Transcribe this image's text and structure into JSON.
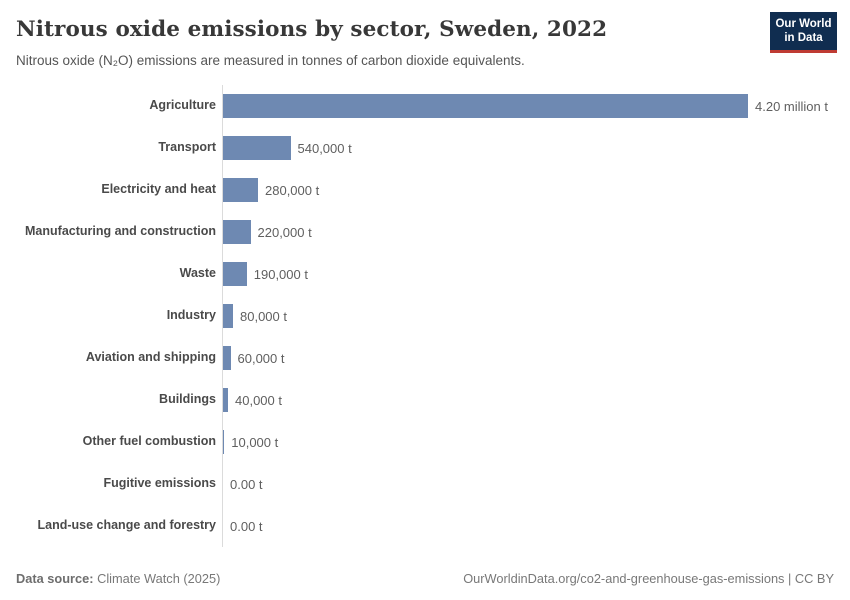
{
  "header": {
    "title": "Nitrous oxide emissions by sector, Sweden, 2022",
    "subtitle": "Nitrous oxide (N₂O) emissions are measured in tonnes of carbon dioxide equivalents.",
    "logo": {
      "line1": "Our World",
      "line2": "in Data",
      "bg_color": "#102d50",
      "accent_color": "#bf3b33"
    }
  },
  "chart_data": {
    "type": "bar",
    "orientation": "horizontal",
    "title": "Nitrous oxide emissions by sector, Sweden, 2022",
    "categories": [
      "Agriculture",
      "Transport",
      "Electricity and heat",
      "Manufacturing and construction",
      "Waste",
      "Industry",
      "Aviation and shipping",
      "Buildings",
      "Other fuel combustion",
      "Fugitive emissions",
      "Land-use change and forestry"
    ],
    "values": [
      4200000,
      540000,
      280000,
      220000,
      190000,
      80000,
      60000,
      40000,
      10000,
      0,
      0
    ],
    "value_labels": [
      "4.20 million t",
      "540,000 t",
      "280,000 t",
      "220,000 t",
      "190,000 t",
      "80,000 t",
      "60,000 t",
      "40,000 t",
      "10,000 t",
      "0.00 t",
      "0.00 t"
    ],
    "xlabel": "",
    "ylabel": "",
    "xlim": [
      0,
      4200000
    ],
    "unit": "tonnes of carbon dioxide equivalents",
    "bar_color": "#6e89b2",
    "grid": false,
    "legend": "none"
  },
  "footer": {
    "datasource_label": "Data source:",
    "datasource_value": " Climate Watch (2025)",
    "credit": "OurWorldinData.org/co2-and-greenhouse-gas-emissions | CC BY"
  }
}
